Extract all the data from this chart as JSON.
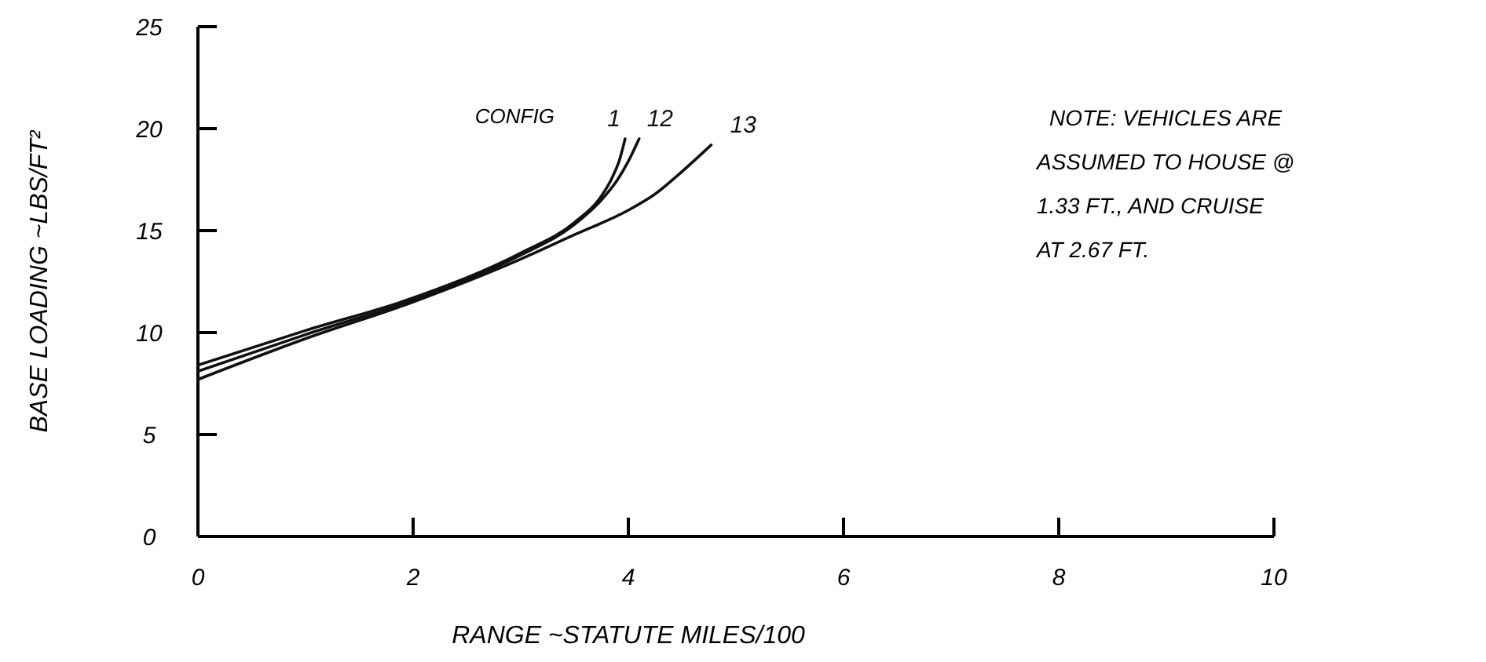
{
  "chart_data": {
    "type": "line",
    "xlabel": "RANGE ~STATUTE MILES/100",
    "ylabel": "BASE LOADING ~LBS/FT²",
    "xlim": [
      0,
      10
    ],
    "ylim": [
      0,
      25
    ],
    "xticks": [
      0,
      2,
      4,
      6,
      8,
      10
    ],
    "yticks": [
      0,
      5,
      10,
      15,
      20,
      25
    ],
    "grid": false,
    "marker": "none",
    "line_style": "solid",
    "legend_title": "CONFIG",
    "annotations": [
      "NOTE: VEHICLES ARE ASSUMED TO HOUSE @ 1.33 FT., AND CRUISE AT 2.67 FT."
    ],
    "series": [
      {
        "name": "1",
        "color": "#111111",
        "x": [
          0,
          1,
          2,
          3,
          3.5,
          3.75,
          3.85,
          3.92,
          3.97
        ],
        "values": [
          8.4,
          10.1,
          11.7,
          13.9,
          15.4,
          16.7,
          17.6,
          18.5,
          19.5
        ]
      },
      {
        "name": "12",
        "color": "#111111",
        "x": [
          0,
          1,
          2,
          3,
          3.5,
          3.75,
          3.9,
          4.0,
          4.1
        ],
        "values": [
          8.1,
          9.9,
          11.6,
          13.8,
          15.3,
          16.5,
          17.5,
          18.4,
          19.5
        ]
      },
      {
        "name": "13",
        "color": "#111111",
        "x": [
          0,
          1,
          2,
          3,
          3.5,
          4,
          4.25,
          4.5,
          4.77
        ],
        "values": [
          7.7,
          9.7,
          11.5,
          13.6,
          14.8,
          16.0,
          16.8,
          17.9,
          19.2
        ]
      }
    ]
  }
}
